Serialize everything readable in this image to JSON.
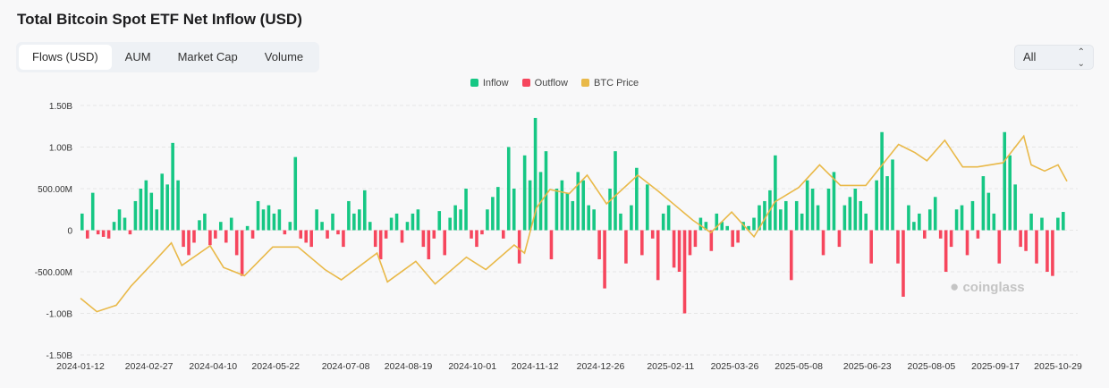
{
  "title": "Total Bitcoin Spot ETF Net Inflow (USD)",
  "tabs": [
    {
      "label": "Flows (USD)",
      "active": true
    },
    {
      "label": "AUM"
    },
    {
      "label": "Market Cap"
    },
    {
      "label": "Volume"
    }
  ],
  "range_select": {
    "value": "All"
  },
  "watermark": "coinglass",
  "colors": {
    "inflow": "#16c784",
    "outflow": "#f6465d",
    "price": "#e9b949"
  },
  "chart_data": {
    "type": "bar",
    "title": "",
    "legend": {
      "placement": "top",
      "entries": [
        "Inflow",
        "Outflow",
        "BTC Price"
      ]
    },
    "y_ticks": [
      "1.50B",
      "1.00B",
      "500.00M",
      "0",
      "-500.00M",
      "-1.00B",
      "-1.50B"
    ],
    "ylim_millions": [
      -1500,
      1500
    ],
    "x_ticks": [
      "2024-01-12",
      "2024-02-27",
      "2024-04-10",
      "2024-05-22",
      "2024-07-08",
      "2024-08-19",
      "2024-10-01",
      "2024-11-12",
      "2024-12-26",
      "2025-02-11",
      "2025-03-26",
      "2025-05-08",
      "2025-06-23",
      "2025-08-05",
      "2025-09-17",
      "2025-10-29"
    ],
    "grid": true,
    "flow_start": "2024-01-12",
    "flow_end": "2025-11-04",
    "flows_millions": [
      200,
      -100,
      450,
      -50,
      -80,
      -100,
      100,
      250,
      150,
      -50,
      350,
      500,
      600,
      450,
      250,
      680,
      550,
      1050,
      600,
      -200,
      -300,
      -150,
      120,
      200,
      -180,
      -100,
      100,
      -150,
      150,
      -300,
      -550,
      50,
      -100,
      350,
      250,
      300,
      200,
      250,
      -50,
      100,
      880,
      -100,
      -150,
      -200,
      250,
      100,
      -100,
      200,
      -50,
      -200,
      350,
      200,
      250,
      480,
      100,
      -200,
      -350,
      -100,
      150,
      200,
      -150,
      100,
      200,
      250,
      -200,
      -350,
      -100,
      230,
      -300,
      150,
      300,
      250,
      500,
      -100,
      -200,
      -50,
      250,
      400,
      520,
      -100,
      1000,
      500,
      -400,
      900,
      600,
      1350,
      700,
      950,
      -350,
      500,
      600,
      450,
      350,
      700,
      600,
      300,
      250,
      -350,
      -700,
      500,
      950,
      200,
      -400,
      300,
      750,
      -300,
      550,
      -100,
      -600,
      200,
      300,
      -450,
      -500,
      -1000,
      -300,
      -200,
      150,
      100,
      -250,
      200,
      100,
      50,
      -200,
      -150,
      100,
      50,
      150,
      300,
      350,
      480,
      900,
      250,
      350,
      -600,
      350,
      200,
      600,
      500,
      300,
      -300,
      500,
      700,
      -200,
      300,
      400,
      500,
      350,
      200,
      -400,
      600,
      1180,
      650,
      850,
      -400,
      -800,
      300,
      100,
      200,
      -100,
      250,
      400,
      -100,
      -500,
      -200,
      250,
      300,
      -300,
      350,
      -100,
      650,
      450,
      200,
      -400,
      1180,
      900,
      550,
      -200,
      -250,
      200,
      -400,
      150,
      -500,
      -550,
      150,
      220
    ],
    "btc_price_usd": [
      [
        "2024-01-12",
        46000
      ],
      [
        "2024-01-23",
        39500
      ],
      [
        "2024-02-05",
        42600
      ],
      [
        "2024-02-15",
        52000
      ],
      [
        "2024-02-28",
        62000
      ],
      [
        "2024-03-13",
        73000
      ],
      [
        "2024-03-20",
        62000
      ],
      [
        "2024-04-08",
        71600
      ],
      [
        "2024-04-17",
        61000
      ],
      [
        "2024-05-01",
        57000
      ],
      [
        "2024-05-20",
        71000
      ],
      [
        "2024-06-06",
        71000
      ],
      [
        "2024-06-24",
        60000
      ],
      [
        "2024-07-05",
        55000
      ],
      [
        "2024-07-29",
        68000
      ],
      [
        "2024-08-05",
        54000
      ],
      [
        "2024-08-24",
        64000
      ],
      [
        "2024-09-06",
        53000
      ],
      [
        "2024-09-27",
        66000
      ],
      [
        "2024-10-10",
        60000
      ],
      [
        "2024-10-29",
        72000
      ],
      [
        "2024-11-05",
        68000
      ],
      [
        "2024-11-13",
        90000
      ],
      [
        "2024-11-22",
        99000
      ],
      [
        "2024-12-05",
        97000
      ],
      [
        "2024-12-17",
        106000
      ],
      [
        "2024-12-30",
        92000
      ],
      [
        "2025-01-20",
        106000
      ],
      [
        "2025-02-03",
        98000
      ],
      [
        "2025-02-26",
        84000
      ],
      [
        "2025-03-10",
        78000
      ],
      [
        "2025-03-24",
        88000
      ],
      [
        "2025-04-08",
        76000
      ],
      [
        "2025-04-22",
        93000
      ],
      [
        "2025-05-08",
        100000
      ],
      [
        "2025-05-22",
        111000
      ],
      [
        "2025-06-05",
        101000
      ],
      [
        "2025-06-22",
        101000
      ],
      [
        "2025-07-14",
        121000
      ],
      [
        "2025-07-25",
        117000
      ],
      [
        "2025-08-02",
        113000
      ],
      [
        "2025-08-14",
        123000
      ],
      [
        "2025-08-26",
        110000
      ],
      [
        "2025-09-05",
        110000
      ],
      [
        "2025-09-22",
        112000
      ],
      [
        "2025-10-06",
        125000
      ],
      [
        "2025-10-11",
        111000
      ],
      [
        "2025-10-20",
        108000
      ],
      [
        "2025-10-29",
        111000
      ],
      [
        "2025-11-04",
        103000
      ]
    ]
  }
}
